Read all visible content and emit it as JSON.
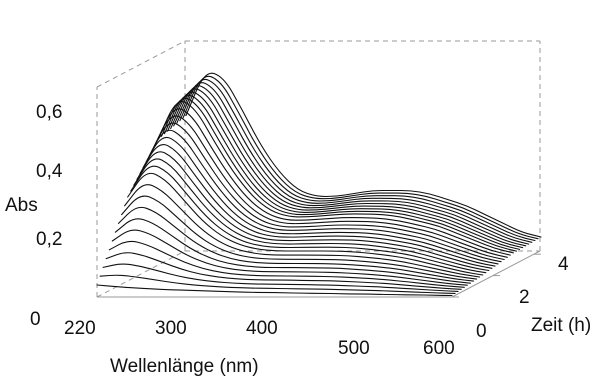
{
  "chart_data": {
    "type": "line",
    "subtype": "3d-waterfall",
    "title": "",
    "xlabel": "Wellenlänge (nm)",
    "ylabel": "Abs",
    "zlabel": "Zeit (h)",
    "xlim": [
      220,
      600
    ],
    "ylim": [
      0,
      0.7
    ],
    "zlim": [
      0,
      4.3
    ],
    "x_ticks": [
      "220",
      "300",
      "400",
      "500",
      "600"
    ],
    "y_ticks": [
      "0",
      "0,2",
      "0,4",
      "0,6"
    ],
    "z_ticks": [
      "0",
      "2",
      "4"
    ],
    "grid": false,
    "line_color": "#111111",
    "box_color": "#9a9a9a",
    "x": [
      220,
      240,
      260,
      280,
      300,
      320,
      340,
      360,
      380,
      400,
      420,
      440,
      460,
      480,
      500,
      520,
      540,
      560,
      580,
      600
    ],
    "series_count": 30,
    "time_step_h": 0.15,
    "series": [
      {
        "time_h": 0.0,
        "values": [
          0.04,
          0.035,
          0.03,
          0.027,
          0.024,
          0.022,
          0.02,
          0.018,
          0.016,
          0.015,
          0.014,
          0.013,
          0.012,
          0.011,
          0.01,
          0.009,
          0.008,
          0.007,
          0.006,
          0.005
        ]
      },
      {
        "time_h": 1.5,
        "values": [
          0.28,
          0.37,
          0.34,
          0.27,
          0.2,
          0.15,
          0.12,
          0.105,
          0.1,
          0.1,
          0.1,
          0.1,
          0.098,
          0.092,
          0.085,
          0.075,
          0.06,
          0.045,
          0.03,
          0.02
        ]
      },
      {
        "time_h": 3.0,
        "values": [
          0.42,
          0.56,
          0.52,
          0.41,
          0.31,
          0.23,
          0.18,
          0.16,
          0.16,
          0.165,
          0.17,
          0.17,
          0.168,
          0.16,
          0.145,
          0.13,
          0.105,
          0.08,
          0.055,
          0.04
        ]
      },
      {
        "time_h": 4.35,
        "values": [
          0.45,
          0.6,
          0.58,
          0.47,
          0.35,
          0.26,
          0.2,
          0.18,
          0.18,
          0.19,
          0.2,
          0.2,
          0.2,
          0.19,
          0.17,
          0.15,
          0.12,
          0.09,
          0.06,
          0.045
        ]
      }
    ]
  }
}
